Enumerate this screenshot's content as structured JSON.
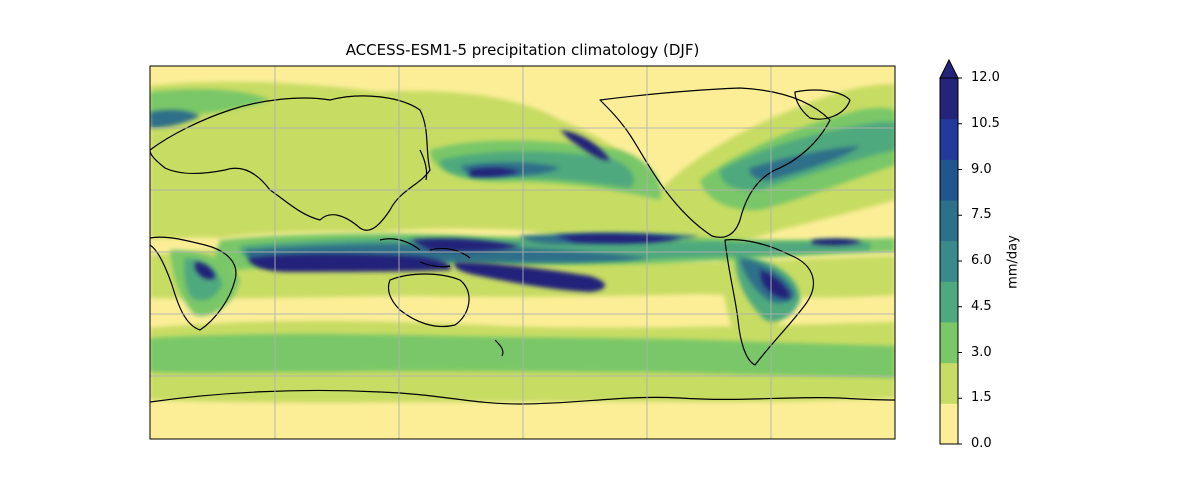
{
  "title": "ACCESS-ESM1-5 precipitation climatology (DJF)",
  "colorbar": {
    "label": "mm/day",
    "ticks": [
      "0.0",
      "1.5",
      "3.0",
      "4.5",
      "6.0",
      "7.5",
      "9.0",
      "10.5",
      "12.0"
    ],
    "levels": [
      0.0,
      1.5,
      3.0,
      4.5,
      6.0,
      7.5,
      9.0,
      10.5,
      12.0
    ],
    "colors": [
      "#fbee97",
      "#c7dc64",
      "#79c767",
      "#4fa97e",
      "#3a8a8a",
      "#2d7089",
      "#1f5690",
      "#223a9c",
      "#24247a"
    ],
    "extend": "max"
  },
  "map": {
    "projection": "PlateCarree",
    "central_longitude": 180,
    "gridlines": true,
    "coastlines": true,
    "ocean_background": "#fbee97"
  }
}
